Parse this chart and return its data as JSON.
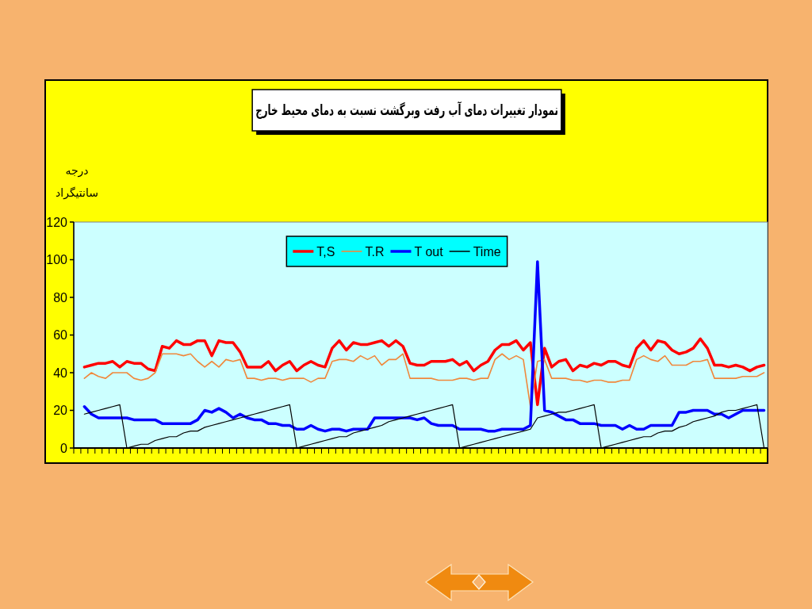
{
  "chart_data": {
    "type": "line",
    "title": "نمودار تغییرات دمای آب رفت وبرگشت نسبت به دمای محیط خارج",
    "ylabel": "درجه سانتیگراد",
    "categories": [
      null,
      null,
      null,
      null,
      null,
      null,
      null,
      null,
      null,
      null,
      null,
      null,
      null,
      null,
      null,
      null,
      null,
      null,
      null,
      null,
      null,
      null,
      null,
      null,
      null,
      null,
      null,
      null,
      null,
      null,
      null,
      null,
      null,
      null,
      null,
      null,
      null,
      null,
      null,
      null,
      null,
      null,
      null,
      null,
      null,
      null,
      null,
      null,
      null,
      null,
      null,
      null,
      null,
      null,
      null,
      null,
      null,
      null,
      null,
      null,
      null,
      null,
      null,
      null,
      null,
      null,
      null,
      null,
      null,
      null,
      null,
      null,
      null,
      null,
      null,
      null,
      null,
      null,
      null,
      null,
      null,
      null,
      null,
      null,
      null,
      null,
      null,
      null,
      null,
      null,
      null,
      null,
      null,
      null,
      null,
      null,
      null,
      null
    ],
    "series": [
      {
        "name": "T,S",
        "color": "#ff0000",
        "values": [
          null,
          43,
          44,
          45,
          45,
          46,
          43,
          46,
          45,
          45,
          42,
          41,
          54,
          53,
          57,
          55,
          55,
          57,
          57,
          49,
          57,
          56,
          56,
          51,
          43,
          43,
          43,
          46,
          41,
          44,
          46,
          41,
          44,
          46,
          44,
          43,
          53,
          57,
          52,
          56,
          55,
          55,
          56,
          57,
          54,
          57,
          54,
          45,
          44,
          44,
          46,
          46,
          46,
          47,
          44,
          46,
          41,
          44,
          46,
          52,
          55,
          55,
          57,
          52,
          56,
          23,
          53,
          43,
          46,
          47,
          41,
          44,
          43,
          45,
          44,
          46,
          46,
          44,
          43,
          53,
          57,
          52,
          57,
          56,
          52,
          50,
          51,
          53,
          58,
          53,
          44,
          44,
          43,
          44,
          43,
          41,
          43,
          44
        ]
      },
      {
        "name": "T.R",
        "color": "#f0883c",
        "values": [
          null,
          37,
          40,
          38,
          37,
          40,
          40,
          40,
          37,
          36,
          37,
          40,
          50,
          50,
          50,
          49,
          50,
          46,
          43,
          46,
          43,
          47,
          46,
          47,
          37,
          37,
          36,
          37,
          37,
          36,
          37,
          37,
          37,
          35,
          37,
          37,
          46,
          47,
          47,
          46,
          49,
          47,
          49,
          44,
          47,
          47,
          50,
          37,
          37,
          37,
          37,
          36,
          36,
          36,
          37,
          37,
          36,
          37,
          37,
          47,
          50,
          47,
          49,
          47,
          22,
          46,
          47,
          37,
          37,
          37,
          36,
          36,
          35,
          36,
          36,
          35,
          35,
          36,
          36,
          47,
          49,
          47,
          46,
          49,
          44,
          44,
          44,
          46,
          46,
          47,
          37,
          37,
          37,
          37,
          38,
          38,
          38,
          40
        ]
      },
      {
        "name": "T out",
        "color": "#0000ff",
        "values": [
          null,
          22,
          18,
          16,
          16,
          16,
          16,
          16,
          15,
          15,
          15,
          15,
          13,
          13,
          13,
          13,
          13,
          15,
          20,
          19,
          21,
          19,
          16,
          18,
          16,
          15,
          15,
          13,
          13,
          12,
          12,
          10,
          10,
          12,
          10,
          9,
          10,
          10,
          9,
          10,
          10,
          10,
          16,
          16,
          16,
          16,
          16,
          16,
          15,
          16,
          13,
          12,
          12,
          12,
          10,
          10,
          10,
          10,
          9,
          9,
          10,
          10,
          10,
          10,
          12,
          99,
          20,
          19,
          17,
          15,
          15,
          13,
          13,
          13,
          12,
          12,
          12,
          10,
          12,
          10,
          10,
          12,
          12,
          12,
          12,
          19,
          19,
          20,
          20,
          20,
          18,
          18,
          16,
          18,
          20,
          20,
          20,
          20
        ]
      },
      {
        "name": "Time",
        "color": "#000000",
        "values": [
          null,
          18,
          19,
          20,
          21,
          22,
          23,
          0,
          1,
          2,
          2,
          4,
          5,
          6,
          6,
          8,
          9,
          9,
          11,
          12,
          13,
          14,
          15,
          16,
          17,
          18,
          19,
          20,
          21,
          22,
          23,
          0,
          1,
          2,
          3,
          4,
          5,
          6,
          6,
          8,
          9,
          10,
          11,
          12,
          14,
          15,
          16,
          17,
          18,
          19,
          20,
          21,
          22,
          23,
          0,
          1,
          2,
          3,
          4,
          5,
          6,
          7,
          8,
          9,
          10,
          16,
          17,
          18,
          19,
          19,
          20,
          21,
          22,
          23,
          0,
          1,
          2,
          3,
          4,
          5,
          6,
          6,
          8,
          9,
          9,
          11,
          12,
          14,
          15,
          16,
          17,
          19,
          20,
          20,
          21,
          22,
          23,
          0
        ]
      }
    ],
    "ylim": [
      0,
      120
    ],
    "yticks": [
      0,
      20,
      40,
      60,
      80,
      100,
      120
    ],
    "legend": "top"
  }
}
